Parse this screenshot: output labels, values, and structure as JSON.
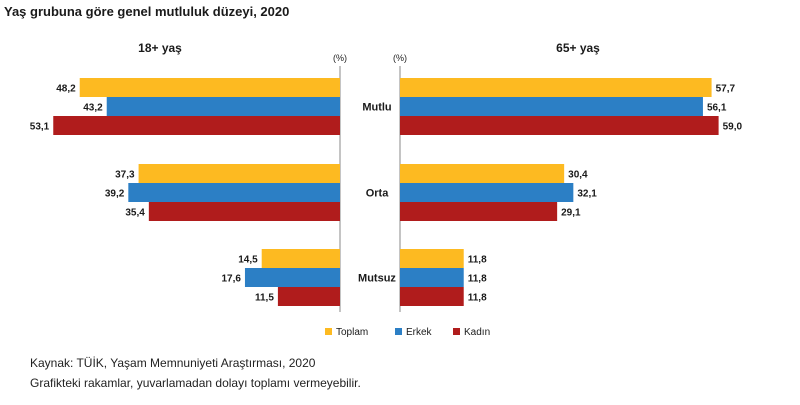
{
  "chart_data": {
    "type": "bar",
    "title": "Yaş grubuna göre genel mutluluk düzeyi, 2020",
    "categories": [
      "Mutlu",
      "Orta",
      "Mutsuz"
    ],
    "unit": "(%)",
    "panels": [
      {
        "name": "18+ yaş",
        "series": [
          {
            "name": "Toplam",
            "values": [
              48.2,
              37.3,
              14.5
            ]
          },
          {
            "name": "Erkek",
            "values": [
              43.2,
              39.2,
              17.6
            ]
          },
          {
            "name": "Kadın",
            "values": [
              53.1,
              35.4,
              11.5
            ]
          }
        ]
      },
      {
        "name": "65+ yaş",
        "series": [
          {
            "name": "Toplam",
            "values": [
              57.7,
              30.4,
              11.8
            ]
          },
          {
            "name": "Erkek",
            "values": [
              56.1,
              32.1,
              11.8
            ]
          },
          {
            "name": "Kadın",
            "values": [
              59.0,
              29.1,
              11.8
            ]
          }
        ]
      }
    ],
    "legend": [
      "Toplam",
      "Erkek",
      "Kadın"
    ],
    "colors": {
      "Toplam": "#FDBA21",
      "Erkek": "#2C7FC5",
      "Kadın": "#B01C1C"
    },
    "decimal_separator": ","
  },
  "footnotes": {
    "source": "Kaynak: TÜİK, Yaşam Memnuniyeti Araştırması, 2020",
    "rounding": "Grafikteki rakamlar, yuvarlamadan dolayı toplamı vermeyebilir."
  }
}
